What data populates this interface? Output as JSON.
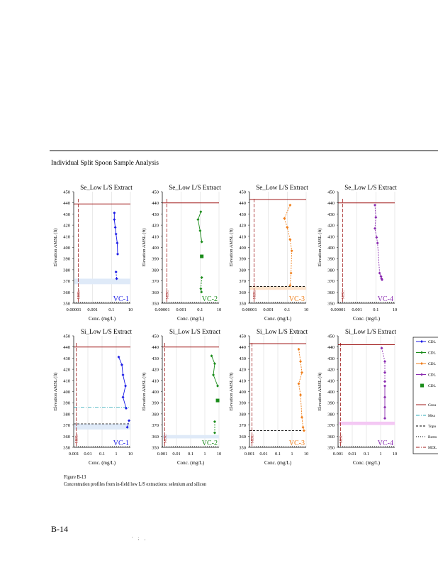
{
  "heading": "Individual Split Spoon Sample Analysis",
  "caption_line1": "Figure B-13",
  "caption_line2": "Concentration profiles from in-field low L/S extractions: selenium and silicon",
  "page_number": "B-14",
  "footer_marks": "' ; ,",
  "colors": {
    "VC-1": "#1a1ae6",
    "VC-2": "#1a8c1a",
    "VC-3": "#f07e1a",
    "VC-4": "#8a2ab0",
    "ground": "#a01818",
    "mdl": "#a01818"
  },
  "legend": {
    "markers": [
      {
        "label": "CDL",
        "symbol": "diamond-line",
        "color": "#1a1ae6"
      },
      {
        "label": "CDL",
        "symbol": "diamond-line",
        "color": "#1a8c1a"
      },
      {
        "label": "CDL",
        "symbol": "diamond-line",
        "color": "#f07e1a"
      },
      {
        "label": "CDL",
        "symbol": "diamond-line",
        "color": "#8a2ab0"
      },
      {
        "label": "CDL",
        "symbol": "square",
        "color": "#1a8c1a"
      }
    ],
    "lines": [
      {
        "label": "Grou",
        "style": "solid",
        "color": "#a01818"
      },
      {
        "label": "Mea",
        "style": "dashdot",
        "color": "#2aa8b8"
      },
      {
        "label": "Topo",
        "style": "dashed",
        "color": "#000000"
      },
      {
        "label": "Botto",
        "style": "dotted",
        "color": "#000000"
      },
      {
        "label": "MDL",
        "style": "dashdot",
        "color": "#a01818"
      }
    ]
  },
  "chart_data": [
    {
      "type": "line",
      "title": "Se_Low L/S Extract",
      "ylabel": "Elevation AMSL (ft)",
      "xlabel": "Conc. (mg/L)",
      "well": "VC-1",
      "color": "#1a1ae6",
      "xscale": "log",
      "xlim": [
        1e-05,
        10
      ],
      "xticks": [
        "0.00001",
        "0.001",
        "0.1",
        "10"
      ],
      "ylim": [
        350,
        450
      ],
      "yticks": [
        350,
        360,
        370,
        380,
        390,
        400,
        410,
        420,
        430,
        440,
        450
      ],
      "ground": 439,
      "mean_band": [
        367,
        372
      ],
      "top": null,
      "bottom": 350,
      "mdl": 3e-05,
      "mdl_label": "MDL",
      "solid": [
        [
          0.2,
          431
        ],
        [
          0.2,
          425
        ],
        [
          0.25,
          418
        ],
        [
          0.3,
          412
        ],
        [
          0.4,
          404
        ],
        [
          0.45,
          394
        ]
      ],
      "dashed": [
        [
          0.3,
          378
        ],
        [
          0.35,
          372
        ]
      ],
      "points": []
    },
    {
      "type": "line",
      "title": "Se_Low L/S Extract",
      "ylabel": "Elevation AMSL (ft)",
      "xlabel": "Conc. (mg/L)",
      "well": "VC-2",
      "color": "#1a8c1a",
      "xscale": "log",
      "xlim": [
        1e-05,
        10
      ],
      "xticks": [
        "0.00001",
        "0.001",
        "0.1",
        "10"
      ],
      "ylim": [
        350,
        450
      ],
      "yticks": [
        350,
        360,
        370,
        380,
        390,
        400,
        410,
        420,
        430,
        440,
        450
      ],
      "ground": 440,
      "mean_band": null,
      "top": null,
      "bottom": 350,
      "mdl": 3e-05,
      "mdl_label": "MDL",
      "solid": [
        [
          0.12,
          432
        ],
        [
          0.06,
          425
        ],
        [
          0.1,
          415
        ],
        [
          0.15,
          405
        ]
      ],
      "dashed": [
        [
          0.15,
          373
        ],
        [
          0.12,
          363
        ],
        [
          0.14,
          360
        ]
      ],
      "points": [
        [
          0.15,
          392
        ]
      ]
    },
    {
      "type": "line",
      "title": "Se_Low L/S Extract",
      "ylabel": "Elevation AMSL (ft)",
      "xlabel": "Conc. (mg/L)",
      "well": "VC-3",
      "color": "#f07e1a",
      "xscale": "log",
      "xlim": [
        1e-05,
        10
      ],
      "xticks": [
        "0.00001",
        "0.001",
        "0.1",
        "10"
      ],
      "ylim": [
        350,
        450
      ],
      "yticks": [
        350,
        360,
        370,
        380,
        390,
        400,
        410,
        420,
        430,
        440,
        450
      ],
      "ground": 443,
      "mean_band": [
        362,
        365
      ],
      "top": 365,
      "bottom": 350,
      "mdl": 3e-05,
      "mdl_label": "MDL",
      "solid": [],
      "dashed": [
        [
          0.2,
          438
        ],
        [
          0.05,
          426
        ],
        [
          0.1,
          418
        ],
        [
          0.2,
          407
        ],
        [
          0.3,
          397
        ],
        [
          0.25,
          377
        ],
        [
          0.2,
          366
        ]
      ],
      "points": []
    },
    {
      "type": "line",
      "title": "Se_Low L/S Extract",
      "ylabel": "Elevation AMSL (ft)",
      "xlabel": "Conc. (mg/L)",
      "well": "VC-4",
      "color": "#8a2ab0",
      "xscale": "log",
      "xlim": [
        1e-05,
        10
      ],
      "xticks": [
        "0.00001",
        "0.001",
        "0.1",
        "10"
      ],
      "ylim": [
        350,
        450
      ],
      "yticks": [
        350,
        360,
        370,
        380,
        390,
        400,
        410,
        420,
        430,
        440,
        450
      ],
      "ground": 440,
      "mean_band": null,
      "top": null,
      "bottom": 350,
      "mdl": 3e-05,
      "mdl_label": "MDL",
      "solid": [],
      "dashed": [
        [
          0.08,
          438
        ],
        [
          0.1,
          427
        ],
        [
          0.08,
          417
        ],
        [
          0.12,
          409
        ],
        [
          0.15,
          404
        ],
        [
          0.25,
          377
        ],
        [
          0.35,
          374
        ],
        [
          0.4,
          372
        ],
        [
          0.45,
          371
        ]
      ],
      "points": []
    },
    {
      "type": "line",
      "title": "Si_Low L/S Extract",
      "ylabel": "Elevation AMSL (ft)",
      "xlabel": "Conc. (mg/L)",
      "well": "VC-1",
      "color": "#1a1ae6",
      "xscale": "log",
      "xlim": [
        0.001,
        10
      ],
      "xticks": [
        "0.001",
        "0.01",
        "0.1",
        "1",
        "10"
      ],
      "ylim": [
        350,
        450
      ],
      "yticks": [
        350,
        360,
        370,
        380,
        390,
        400,
        410,
        420,
        430,
        440,
        450
      ],
      "ground": 440,
      "mean_band": [
        366,
        371
      ],
      "top": 371,
      "bottom": 350,
      "mean_line": 386,
      "mdl": 0.0015,
      "mdl_label": "MDL",
      "solid": [
        [
          1.5,
          431
        ],
        [
          2.5,
          424
        ],
        [
          3,
          415
        ],
        [
          4.5,
          405
        ],
        [
          3,
          395
        ],
        [
          5,
          385
        ]
      ],
      "dashed": [
        [
          8,
          374
        ],
        [
          6,
          368
        ]
      ],
      "points": []
    },
    {
      "type": "line",
      "title": "Si_Low L/S Extract",
      "ylabel": "Elevation AMSL (ft)",
      "xlabel": "Conc. (mg/L)",
      "well": "VC-2",
      "color": "#1a8c1a",
      "xscale": "log",
      "xlim": [
        0.001,
        10
      ],
      "xticks": [
        "0.001",
        "0.01",
        "0.1",
        "1",
        "10"
      ],
      "ylim": [
        350,
        450
      ],
      "yticks": [
        350,
        360,
        370,
        380,
        390,
        400,
        410,
        420,
        430,
        440,
        450
      ],
      "ground": 440,
      "mean_band": [
        358,
        361
      ],
      "top": null,
      "bottom": 350,
      "mdl": 0.0015,
      "mdl_label": "MDL",
      "solid": [
        [
          3,
          432
        ],
        [
          5,
          425
        ],
        [
          4,
          415
        ],
        [
          8,
          405
        ]
      ],
      "dashed": [
        [
          5,
          373
        ],
        [
          5,
          363
        ]
      ],
      "points": [
        [
          8,
          392
        ]
      ]
    },
    {
      "type": "line",
      "title": "Si_Low L/S Extract",
      "ylabel": "Elevation AMSL (ft)",
      "xlabel": "Conc. (mg/L)",
      "well": "VC-3",
      "color": "#f07e1a",
      "xscale": "log",
      "xlim": [
        0.001,
        10
      ],
      "xticks": [
        "0.001",
        "0.01",
        "0.1",
        "1",
        "10"
      ],
      "ylim": [
        350,
        450
      ],
      "yticks": [
        350,
        360,
        370,
        380,
        390,
        400,
        410,
        420,
        430,
        440,
        450
      ],
      "ground": 443,
      "mean_band": null,
      "top": 365,
      "bottom": 350,
      "mdl": 0.0015,
      "mdl_label": "MDL",
      "solid": [],
      "dashed": [
        [
          3,
          438
        ],
        [
          4,
          427
        ],
        [
          5,
          417
        ],
        [
          3,
          407
        ],
        [
          4,
          397
        ],
        [
          5,
          377
        ],
        [
          6,
          368
        ],
        [
          7,
          365
        ]
      ],
      "points": []
    },
    {
      "type": "line",
      "title": "Si_Low L/S Extract",
      "ylabel": "Elevation AMSL (ft)",
      "xlabel": "Conc. (mg/L)",
      "well": "VC-4",
      "color": "#8a2ab0",
      "xscale": "log",
      "xlim": [
        0.001,
        10
      ],
      "xticks": [
        "0.001",
        "0.01",
        "0.1",
        "1",
        "10"
      ],
      "ylim": [
        350,
        450
      ],
      "yticks": [
        350,
        360,
        370,
        380,
        390,
        400,
        410,
        420,
        430,
        440,
        450
      ],
      "ground": 442,
      "mean_band": [
        370,
        373
      ],
      "top": null,
      "bottom": 350,
      "mdl": 0.0015,
      "mdl_label": "MDL",
      "solid": [
        [
          2,
          405
        ],
        [
          2,
          395
        ],
        [
          2,
          386
        ],
        [
          2,
          376
        ]
      ],
      "dashed": [
        [
          1.2,
          439
        ],
        [
          2,
          427
        ],
        [
          2,
          417
        ],
        [
          2,
          409
        ]
      ],
      "points": []
    }
  ]
}
